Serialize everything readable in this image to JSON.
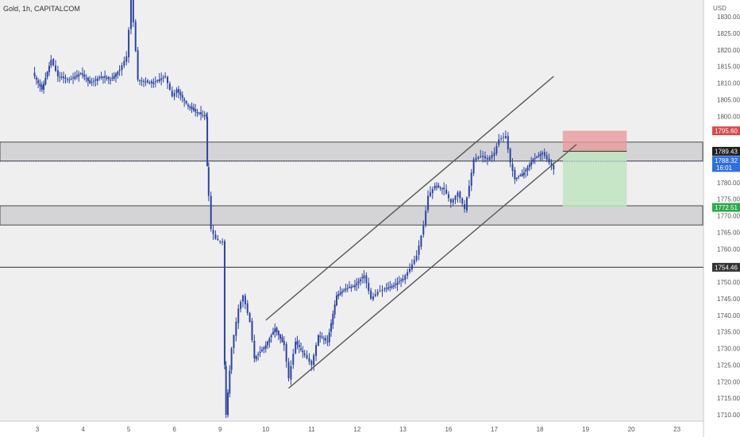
{
  "symbol_header": "Gold, 1h, CAPITALCOM",
  "currency": "USD",
  "price_tags": {
    "stop_loss": "1795.60",
    "current": "1789.43",
    "last": "1788.32",
    "countdown": "16:01",
    "target": "1772.51",
    "horizontal_line": "1754.46"
  },
  "colors": {
    "background": "#efefef",
    "candle": "#2a45a6",
    "zone_fill": "#d4d4d6",
    "zone_border": "#4a4a4a",
    "stop_zone": "#e79a9a",
    "target_zone": "#bfe3bf",
    "stop_tag": "#d94a4a",
    "current_tag": "#1e1e1e",
    "last_tag": "#2f6fe0",
    "target_tag": "#2eaa4a",
    "level_tag": "#333333"
  },
  "chart_data": {
    "type": "candlestick",
    "title": "Gold, 1h, CAPITALCOM",
    "ylabel": "USD",
    "ylim": [
      1708,
      1837
    ],
    "y_ticks": [
      1710,
      1715,
      1720,
      1725,
      1730,
      1735,
      1740,
      1745,
      1750,
      1755,
      1760,
      1765,
      1770,
      1775,
      1780,
      1785,
      1790,
      1795,
      1800,
      1805,
      1810,
      1815,
      1820,
      1825,
      1830
    ],
    "x_ticks": [
      "3",
      "4",
      "5",
      "6",
      "9",
      "10",
      "11",
      "12",
      "13",
      "16",
      "17",
      "18",
      "19",
      "20",
      "23"
    ],
    "x_range": [
      -0.1,
      14.7
    ],
    "supply_zone": [
      1786.5,
      1792.2
    ],
    "demand_zone": [
      1767.2,
      1773.0
    ],
    "horizontal_level": 1754.46,
    "channel_upper": [
      [
        5.0,
        1738.5
      ],
      [
        11.3,
        1812.0
      ]
    ],
    "channel_lower": [
      [
        5.5,
        1718.0
      ],
      [
        11.8,
        1791.5
      ]
    ],
    "position": {
      "type": "short",
      "entry": 1789.43,
      "stop": 1795.6,
      "target": 1772.51,
      "x_range": [
        11.5,
        12.9
      ]
    },
    "candles": [
      [
        -0.1,
        1813
      ],
      [
        0.1,
        1808
      ],
      [
        0.3,
        1817
      ],
      [
        0.45,
        1812
      ],
      [
        0.7,
        1811
      ],
      [
        0.95,
        1813
      ],
      [
        1.15,
        1810
      ],
      [
        1.4,
        1812
      ],
      [
        1.6,
        1811
      ],
      [
        1.8,
        1814
      ],
      [
        1.95,
        1818
      ],
      [
        2.0,
        1826
      ],
      [
        2.05,
        1837
      ],
      [
        2.2,
        1811
      ],
      [
        2.5,
        1810
      ],
      [
        2.8,
        1812
      ],
      [
        2.95,
        1806
      ],
      [
        3.05,
        1808
      ],
      [
        3.3,
        1803
      ],
      [
        3.5,
        1801
      ],
      [
        3.7,
        1800
      ],
      [
        3.72,
        1785
      ],
      [
        3.75,
        1776
      ],
      [
        3.8,
        1766
      ],
      [
        3.9,
        1763
      ],
      [
        4.05,
        1762
      ],
      [
        4.1,
        1725
      ],
      [
        4.13,
        1710
      ],
      [
        4.25,
        1730
      ],
      [
        4.4,
        1742
      ],
      [
        4.5,
        1746
      ],
      [
        4.65,
        1738
      ],
      [
        4.75,
        1727
      ],
      [
        5.0,
        1731
      ],
      [
        5.2,
        1736
      ],
      [
        5.4,
        1731
      ],
      [
        5.5,
        1721
      ],
      [
        5.65,
        1732
      ],
      [
        5.85,
        1728
      ],
      [
        6.0,
        1725
      ],
      [
        6.15,
        1734
      ],
      [
        6.35,
        1732
      ],
      [
        6.55,
        1746
      ],
      [
        6.75,
        1748
      ],
      [
        6.95,
        1749
      ],
      [
        7.15,
        1752
      ],
      [
        7.3,
        1745
      ],
      [
        7.45,
        1747
      ],
      [
        7.6,
        1748
      ],
      [
        7.8,
        1749
      ],
      [
        8.0,
        1751
      ],
      [
        8.15,
        1754
      ],
      [
        8.3,
        1758
      ],
      [
        8.45,
        1767
      ],
      [
        8.55,
        1776
      ],
      [
        8.7,
        1779
      ],
      [
        8.9,
        1778
      ],
      [
        9.05,
        1774
      ],
      [
        9.2,
        1777
      ],
      [
        9.35,
        1772
      ],
      [
        9.45,
        1779
      ],
      [
        9.55,
        1787
      ],
      [
        9.7,
        1788
      ],
      [
        9.85,
        1787
      ],
      [
        10.0,
        1789
      ],
      [
        10.1,
        1793
      ],
      [
        10.25,
        1794
      ],
      [
        10.35,
        1786
      ],
      [
        10.45,
        1781
      ],
      [
        10.65,
        1783
      ],
      [
        10.85,
        1787
      ],
      [
        11.05,
        1789
      ],
      [
        11.15,
        1787
      ],
      [
        11.3,
        1784
      ]
    ]
  }
}
